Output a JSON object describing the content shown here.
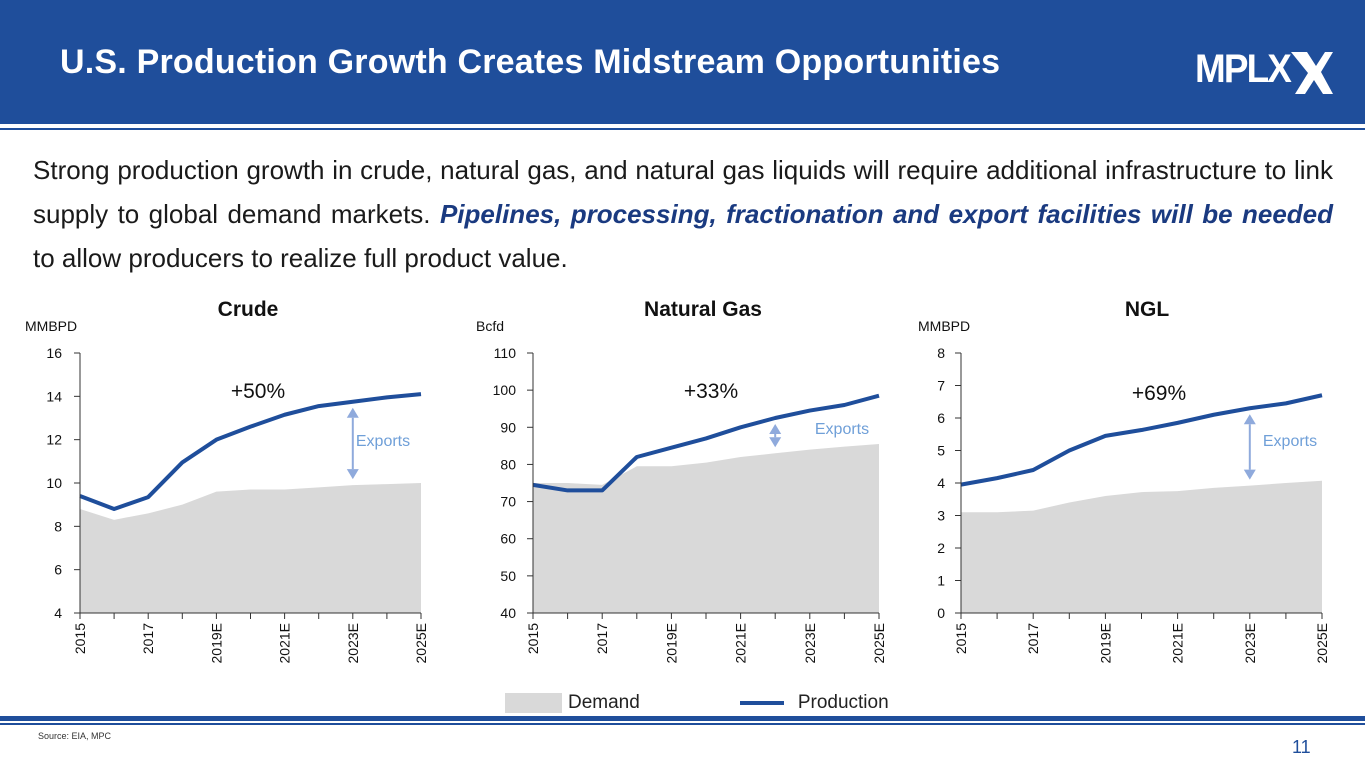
{
  "header": {
    "title": "U.S. Production Growth Creates Midstream Opportunities",
    "logo_text": "MPLX"
  },
  "intro": {
    "line1": "Strong production growth in crude, natural gas, and natural gas liquids will require additional infrastructure to link supply to global demand markets.",
    "emphasis": "Pipelines, processing, fractionation and export facilities will be needed",
    "line2": " to allow producers to realize full product value."
  },
  "legend": {
    "demand_label": "Demand",
    "production_label": "Production"
  },
  "footer": {
    "source": "Source: EIA, MPC",
    "page_number": "11"
  },
  "colors": {
    "brand": "#1f4e9b",
    "demand_fill": "#d9d9d9",
    "arrow": "#8faadc",
    "exports_text": "#6f9fd8"
  },
  "chart_data": [
    {
      "type": "area",
      "title": "Crude",
      "ylabel": "MMBPD",
      "ylim": [
        4,
        16
      ],
      "yticks": [
        4,
        6,
        8,
        10,
        12,
        14,
        16
      ],
      "years": [
        "2015",
        "2016",
        "2017",
        "2018",
        "2019E",
        "2020E",
        "2021E",
        "2022E",
        "2023E",
        "2024E",
        "2025E"
      ],
      "xtick_labels": [
        "2015",
        "2017",
        "2019E",
        "2021E",
        "2023E",
        "2025E"
      ],
      "series": [
        {
          "name": "Demand",
          "values": [
            8.8,
            8.3,
            8.6,
            9.0,
            9.6,
            9.7,
            9.7,
            9.8,
            9.9,
            9.95,
            10.0
          ]
        },
        {
          "name": "Production",
          "values": [
            9.4,
            8.8,
            9.35,
            10.95,
            12.0,
            12.6,
            13.15,
            13.55,
            13.75,
            13.95,
            14.1
          ]
        }
      ],
      "growth_label": "+50%",
      "exports_label": "Exports",
      "exports_year": "2023E"
    },
    {
      "type": "area",
      "title": "Natural Gas",
      "ylabel": "Bcfd",
      "ylim": [
        40,
        110
      ],
      "yticks": [
        40,
        50,
        60,
        70,
        80,
        90,
        100,
        110
      ],
      "years": [
        "2015",
        "2016",
        "2017",
        "2018",
        "2019E",
        "2020E",
        "2021E",
        "2022E",
        "2023E",
        "2024E",
        "2025E"
      ],
      "xtick_labels": [
        "2015",
        "2017",
        "2019E",
        "2021E",
        "2023E",
        "2025E"
      ],
      "series": [
        {
          "name": "Demand",
          "values": [
            75,
            75,
            74.5,
            79.5,
            79.5,
            80.5,
            82,
            83,
            84,
            84.8,
            85.5
          ]
        },
        {
          "name": "Production",
          "values": [
            74.5,
            73,
            73,
            82,
            84.5,
            87,
            90,
            92.5,
            94.5,
            96,
            98.5
          ]
        }
      ],
      "growth_label": "+33%",
      "exports_label": "Exports",
      "exports_year": "2022E"
    },
    {
      "type": "area",
      "title": "NGL",
      "ylabel": "MMBPD",
      "ylim": [
        0,
        8
      ],
      "yticks": [
        0,
        1,
        2,
        3,
        4,
        5,
        6,
        7,
        8
      ],
      "years": [
        "2015",
        "2016",
        "2017",
        "2018",
        "2019E",
        "2020E",
        "2021E",
        "2022E",
        "2023E",
        "2024E",
        "2025E"
      ],
      "xtick_labels": [
        "2015",
        "2017",
        "2019E",
        "2021E",
        "2023E",
        "2025E"
      ],
      "series": [
        {
          "name": "Demand",
          "values": [
            3.1,
            3.1,
            3.15,
            3.4,
            3.6,
            3.72,
            3.75,
            3.85,
            3.92,
            4.0,
            4.07
          ]
        },
        {
          "name": "Production",
          "values": [
            3.95,
            4.15,
            4.4,
            5.0,
            5.45,
            5.63,
            5.85,
            6.1,
            6.3,
            6.45,
            6.7
          ]
        }
      ],
      "growth_label": "+69%",
      "exports_label": "Exports",
      "exports_year": "2023E"
    }
  ]
}
